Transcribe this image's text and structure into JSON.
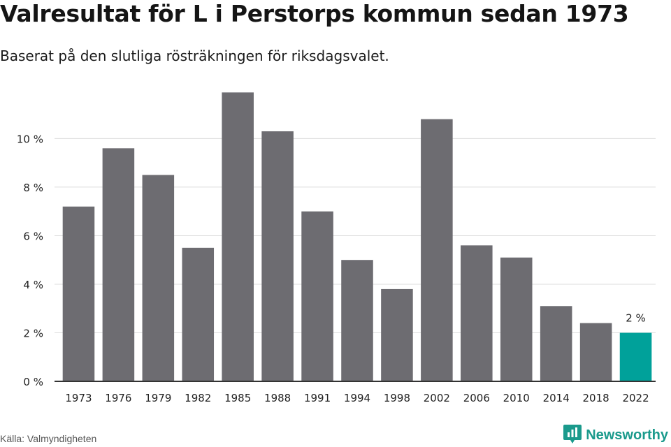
{
  "header": {
    "title": "Valresultat för L i Perstorps kommun sedan 1973",
    "subtitle": "Baserat på den slutliga rösträkningen för riksdagsvalet."
  },
  "footer": {
    "source": "Källa: Valmyndigheten",
    "brand": "Newsworthy",
    "brand_icon": "newsworthy-logo-icon"
  },
  "colors": {
    "bar": "#6d6c71",
    "highlight": "#00a19a",
    "brand": "#1a9a8c",
    "grid": "#dcdcdc",
    "axis": "#333333"
  },
  "chart_data": {
    "type": "bar",
    "categories": [
      "1973",
      "1976",
      "1979",
      "1982",
      "1985",
      "1988",
      "1991",
      "1994",
      "1998",
      "2002",
      "2006",
      "2010",
      "2014",
      "2018",
      "2022"
    ],
    "values": [
      7.2,
      9.6,
      8.5,
      5.5,
      11.9,
      10.3,
      7.0,
      5.0,
      3.8,
      10.8,
      5.6,
      5.1,
      3.1,
      2.4,
      2.0
    ],
    "highlight_index": 14,
    "data_labels": [
      {
        "index": 14,
        "text": "2 %"
      }
    ],
    "yticks": [
      0,
      2,
      4,
      6,
      8,
      10
    ],
    "ytick_labels": [
      "0 %",
      "2 %",
      "4 %",
      "6 %",
      "8 %",
      "10 %"
    ],
    "ylim": [
      0,
      12.5
    ],
    "grid": true,
    "legend": "none"
  }
}
